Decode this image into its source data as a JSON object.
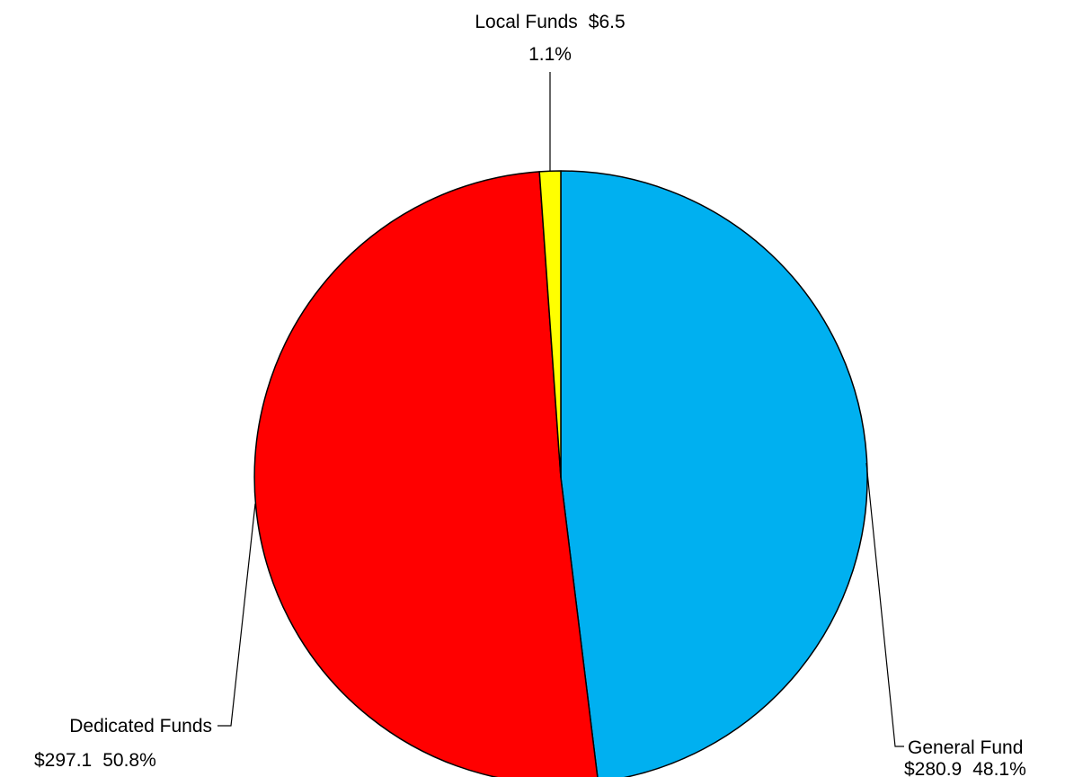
{
  "chart_data": {
    "type": "pie",
    "start_angle_deg": 0,
    "direction": "clockwise",
    "slices": [
      {
        "category": "General Fund",
        "value": 280.9,
        "value_label": "$280.9",
        "percent_label": "48.1%",
        "color": "#00B0F0"
      },
      {
        "category": "Dedicated Funds",
        "value": 297.1,
        "value_label": "$297.1",
        "percent_label": "50.8%",
        "color": "#FF0000"
      },
      {
        "category": "Local Funds",
        "value": 6.5,
        "value_label": "$6.5",
        "percent_label": "1.1%",
        "color": "#FFFF00"
      }
    ],
    "slice_border_color": "#000000"
  }
}
